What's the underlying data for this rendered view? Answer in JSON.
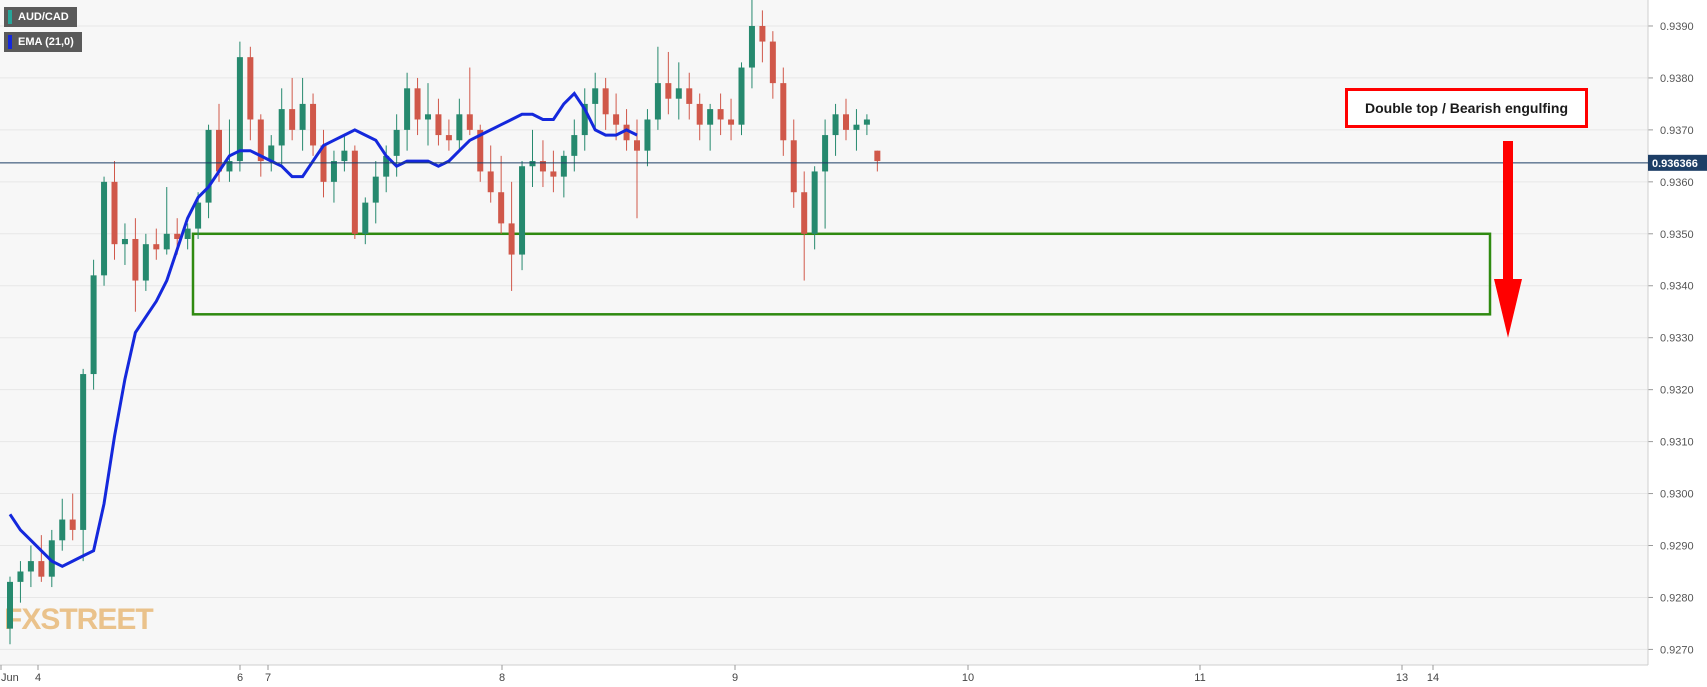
{
  "legend": {
    "symbol": "AUD/CAD",
    "indicator": "EMA (21,0)",
    "symbol_color": "#26a69a",
    "indicator_color": "#1428dc"
  },
  "annotation": {
    "text": "Double top / Bearish engulfing",
    "border_color": "#ff0000"
  },
  "watermark": "FXSTREET",
  "colors": {
    "up": "#26896e",
    "down": "#d0584a",
    "ema": "#1428dc",
    "zone": "#2f8a10",
    "arrow": "#ff0000",
    "price_line": "#1d3e66",
    "grid": "#e7e7e7"
  },
  "chart_data": {
    "type": "candlestick",
    "symbol": "AUD/CAD",
    "ylim": [
      0.9267,
      0.9395
    ],
    "y_ticks": [
      "0.9270",
      "0.9280",
      "0.9290",
      "0.9300",
      "0.9310",
      "0.9320",
      "0.9330",
      "0.9340",
      "0.9350",
      "0.9360",
      "0.9370",
      "0.9380",
      "0.9390"
    ],
    "x_ticks": [
      "Jun",
      "4",
      "6",
      "7",
      "8",
      "9",
      "10",
      "11",
      "13",
      "14"
    ],
    "last_price": "0.936366",
    "support_zone": [
      0.93345,
      0.935
    ],
    "projected_target": 0.933,
    "ema": [
      0.9296,
      0.9293,
      0.9291,
      0.9289,
      0.9287,
      0.9286,
      0.9287,
      0.9288,
      0.9289,
      0.9298,
      0.9311,
      0.9322,
      0.9331,
      0.9334,
      0.9337,
      0.9341,
      0.9347,
      0.9353,
      0.9357,
      0.9359,
      0.9362,
      0.9365,
      0.9366,
      0.9366,
      0.9365,
      0.9364,
      0.9363,
      0.9361,
      0.9361,
      0.9364,
      0.9367,
      0.9368,
      0.9369,
      0.937,
      0.9369,
      0.9368,
      0.9365,
      0.9363,
      0.9364,
      0.9364,
      0.9364,
      0.9363,
      0.9364,
      0.9366,
      0.9368,
      0.9369,
      0.937,
      0.9371,
      0.9372,
      0.9373,
      0.9373,
      0.9372,
      0.9372,
      0.9375,
      0.9377,
      0.9374,
      0.937,
      0.9369,
      0.9369,
      0.937,
      0.9369
    ],
    "candles": [
      [
        0.9274,
        0.9284,
        0.9271,
        0.9283
      ],
      [
        0.9283,
        0.9287,
        0.9279,
        0.9285
      ],
      [
        0.9285,
        0.929,
        0.9282,
        0.9287
      ],
      [
        0.9287,
        0.9292,
        0.9283,
        0.9284
      ],
      [
        0.9284,
        0.9293,
        0.9282,
        0.9291
      ],
      [
        0.9291,
        0.9299,
        0.9289,
        0.9295
      ],
      [
        0.9295,
        0.93,
        0.9291,
        0.9293
      ],
      [
        0.9293,
        0.9324,
        0.9287,
        0.9323
      ],
      [
        0.9323,
        0.9345,
        0.932,
        0.9342
      ],
      [
        0.9342,
        0.9361,
        0.934,
        0.936
      ],
      [
        0.936,
        0.9364,
        0.9345,
        0.9348
      ],
      [
        0.9348,
        0.9352,
        0.9344,
        0.9349
      ],
      [
        0.9349,
        0.9353,
        0.9335,
        0.9341
      ],
      [
        0.9341,
        0.935,
        0.9339,
        0.9348
      ],
      [
        0.9348,
        0.9351,
        0.9345,
        0.9347
      ],
      [
        0.9347,
        0.9359,
        0.9346,
        0.935
      ],
      [
        0.935,
        0.9353,
        0.9346,
        0.9349
      ],
      [
        0.9349,
        0.9352,
        0.9347,
        0.9351
      ],
      [
        0.9351,
        0.9358,
        0.9349,
        0.9356
      ],
      [
        0.9356,
        0.9371,
        0.9353,
        0.937
      ],
      [
        0.937,
        0.9375,
        0.936,
        0.9362
      ],
      [
        0.9362,
        0.9372,
        0.936,
        0.9364
      ],
      [
        0.9364,
        0.9387,
        0.9362,
        0.9384
      ],
      [
        0.9384,
        0.9386,
        0.9368,
        0.9372
      ],
      [
        0.9372,
        0.9373,
        0.9361,
        0.9364
      ],
      [
        0.9364,
        0.9369,
        0.9362,
        0.9367
      ],
      [
        0.9367,
        0.9378,
        0.9363,
        0.9374
      ],
      [
        0.9374,
        0.938,
        0.9368,
        0.937
      ],
      [
        0.937,
        0.938,
        0.9366,
        0.9375
      ],
      [
        0.9375,
        0.9377,
        0.9365,
        0.9367
      ],
      [
        0.9367,
        0.937,
        0.9357,
        0.936
      ],
      [
        0.936,
        0.9366,
        0.9356,
        0.9364
      ],
      [
        0.9364,
        0.9369,
        0.9362,
        0.9366
      ],
      [
        0.9366,
        0.9367,
        0.9349,
        0.935
      ],
      [
        0.935,
        0.9357,
        0.9348,
        0.9356
      ],
      [
        0.9356,
        0.9364,
        0.9352,
        0.9361
      ],
      [
        0.9361,
        0.9367,
        0.9358,
        0.9365
      ],
      [
        0.9365,
        0.9373,
        0.9361,
        0.937
      ],
      [
        0.937,
        0.9381,
        0.9366,
        0.9378
      ],
      [
        0.9378,
        0.938,
        0.9369,
        0.9372
      ],
      [
        0.9372,
        0.9379,
        0.9367,
        0.9373
      ],
      [
        0.9373,
        0.9376,
        0.9367,
        0.9369
      ],
      [
        0.9369,
        0.9372,
        0.9366,
        0.9368
      ],
      [
        0.9368,
        0.9376,
        0.9366,
        0.9373
      ],
      [
        0.9373,
        0.9382,
        0.9369,
        0.937
      ],
      [
        0.937,
        0.9371,
        0.936,
        0.9362
      ],
      [
        0.9362,
        0.9367,
        0.9356,
        0.9358
      ],
      [
        0.9358,
        0.9365,
        0.935,
        0.9352
      ],
      [
        0.9352,
        0.936,
        0.9339,
        0.9346
      ],
      [
        0.9346,
        0.9364,
        0.9343,
        0.9363
      ],
      [
        0.9363,
        0.937,
        0.9359,
        0.9364
      ],
      [
        0.9364,
        0.9368,
        0.9359,
        0.9362
      ],
      [
        0.9362,
        0.9366,
        0.9358,
        0.9361
      ],
      [
        0.9361,
        0.9366,
        0.9357,
        0.9365
      ],
      [
        0.9365,
        0.9372,
        0.9362,
        0.9369
      ],
      [
        0.9369,
        0.9378,
        0.9366,
        0.9375
      ],
      [
        0.9375,
        0.9381,
        0.937,
        0.9378
      ],
      [
        0.9378,
        0.938,
        0.937,
        0.9373
      ],
      [
        0.9373,
        0.9377,
        0.9368,
        0.9371
      ],
      [
        0.9371,
        0.9374,
        0.9366,
        0.9368
      ],
      [
        0.9368,
        0.9372,
        0.9353,
        0.9366
      ],
      [
        0.9366,
        0.9374,
        0.9363,
        0.9372
      ],
      [
        0.9372,
        0.9386,
        0.937,
        0.9379
      ],
      [
        0.9379,
        0.9385,
        0.9373,
        0.9376
      ],
      [
        0.9376,
        0.9383,
        0.9372,
        0.9378
      ],
      [
        0.9378,
        0.9381,
        0.9372,
        0.9375
      ],
      [
        0.9375,
        0.9377,
        0.9368,
        0.9371
      ],
      [
        0.9371,
        0.9375,
        0.9366,
        0.9374
      ],
      [
        0.9374,
        0.9377,
        0.9369,
        0.9372
      ],
      [
        0.9372,
        0.9376,
        0.9368,
        0.9371
      ],
      [
        0.9371,
        0.9383,
        0.9369,
        0.9382
      ],
      [
        0.9382,
        0.9395,
        0.9378,
        0.939
      ],
      [
        0.939,
        0.9393,
        0.9383,
        0.9387
      ],
      [
        0.9387,
        0.9389,
        0.9376,
        0.9379
      ],
      [
        0.9379,
        0.9382,
        0.9365,
        0.9368
      ],
      [
        0.9368,
        0.9372,
        0.9355,
        0.9358
      ],
      [
        0.9358,
        0.9362,
        0.9341,
        0.935
      ],
      [
        0.935,
        0.9363,
        0.9347,
        0.9362
      ],
      [
        0.9362,
        0.9372,
        0.9351,
        0.9369
      ],
      [
        0.9369,
        0.9375,
        0.9365,
        0.9373
      ],
      [
        0.9373,
        0.9376,
        0.9368,
        0.937
      ],
      [
        0.937,
        0.9374,
        0.9366,
        0.9371
      ],
      [
        0.9371,
        0.9373,
        0.9369,
        0.9372
      ],
      [
        0.9366,
        0.9366,
        0.9362,
        0.9364
      ]
    ]
  }
}
